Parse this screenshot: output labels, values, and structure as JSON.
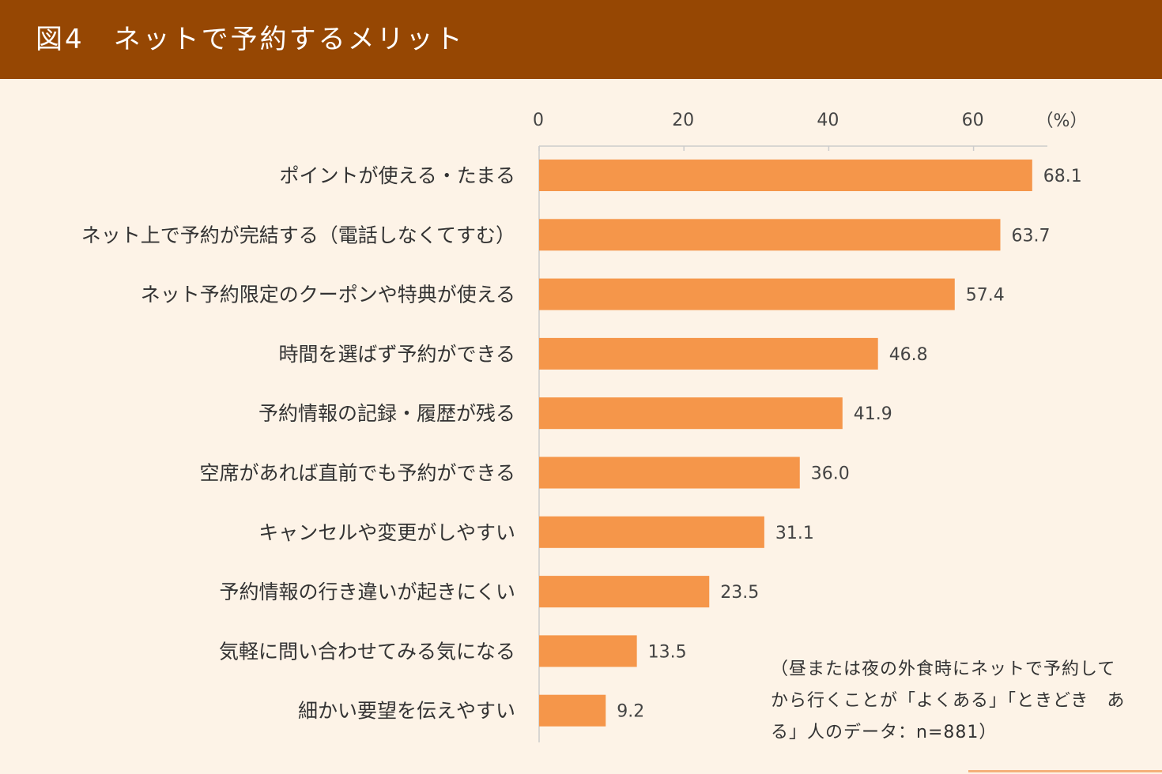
{
  "title": "図4　ネットで予約するメリット",
  "chart_data": {
    "type": "bar",
    "orientation": "horizontal",
    "x_unit": "（%）",
    "x_ticks": [
      0,
      20,
      40,
      60
    ],
    "xlim": [
      0,
      70
    ],
    "categories": [
      "ポイントが使える・たまる",
      "ネット上で予約が完結する（電話しなくてすむ）",
      "ネット予約限定のクーポンや特典が使える",
      "時間を選ばず予約ができる",
      "予約情報の記録・履歴が残る",
      "空席があれば直前でも予約ができる",
      "キャンセルや変更がしやすい",
      "予約情報の行き違いが起きにくい",
      "気軽に問い合わせてみる気になる",
      "細かい要望を伝えやすい"
    ],
    "values": [
      68.1,
      63.7,
      57.4,
      46.8,
      41.9,
      36.0,
      31.1,
      23.5,
      13.5,
      9.2
    ],
    "value_labels": [
      "68.1",
      "63.7",
      "57.4",
      "46.8",
      "41.9",
      "36.0",
      "31.1",
      "23.5",
      "13.5",
      "9.2"
    ],
    "bar_color": "#f5964a",
    "grid": false,
    "legend": "none"
  },
  "note": "（昼または夜の外食時にネットで予約して　から行くことが「よくある」「ときどき　ある」人のデータ：n=881）"
}
